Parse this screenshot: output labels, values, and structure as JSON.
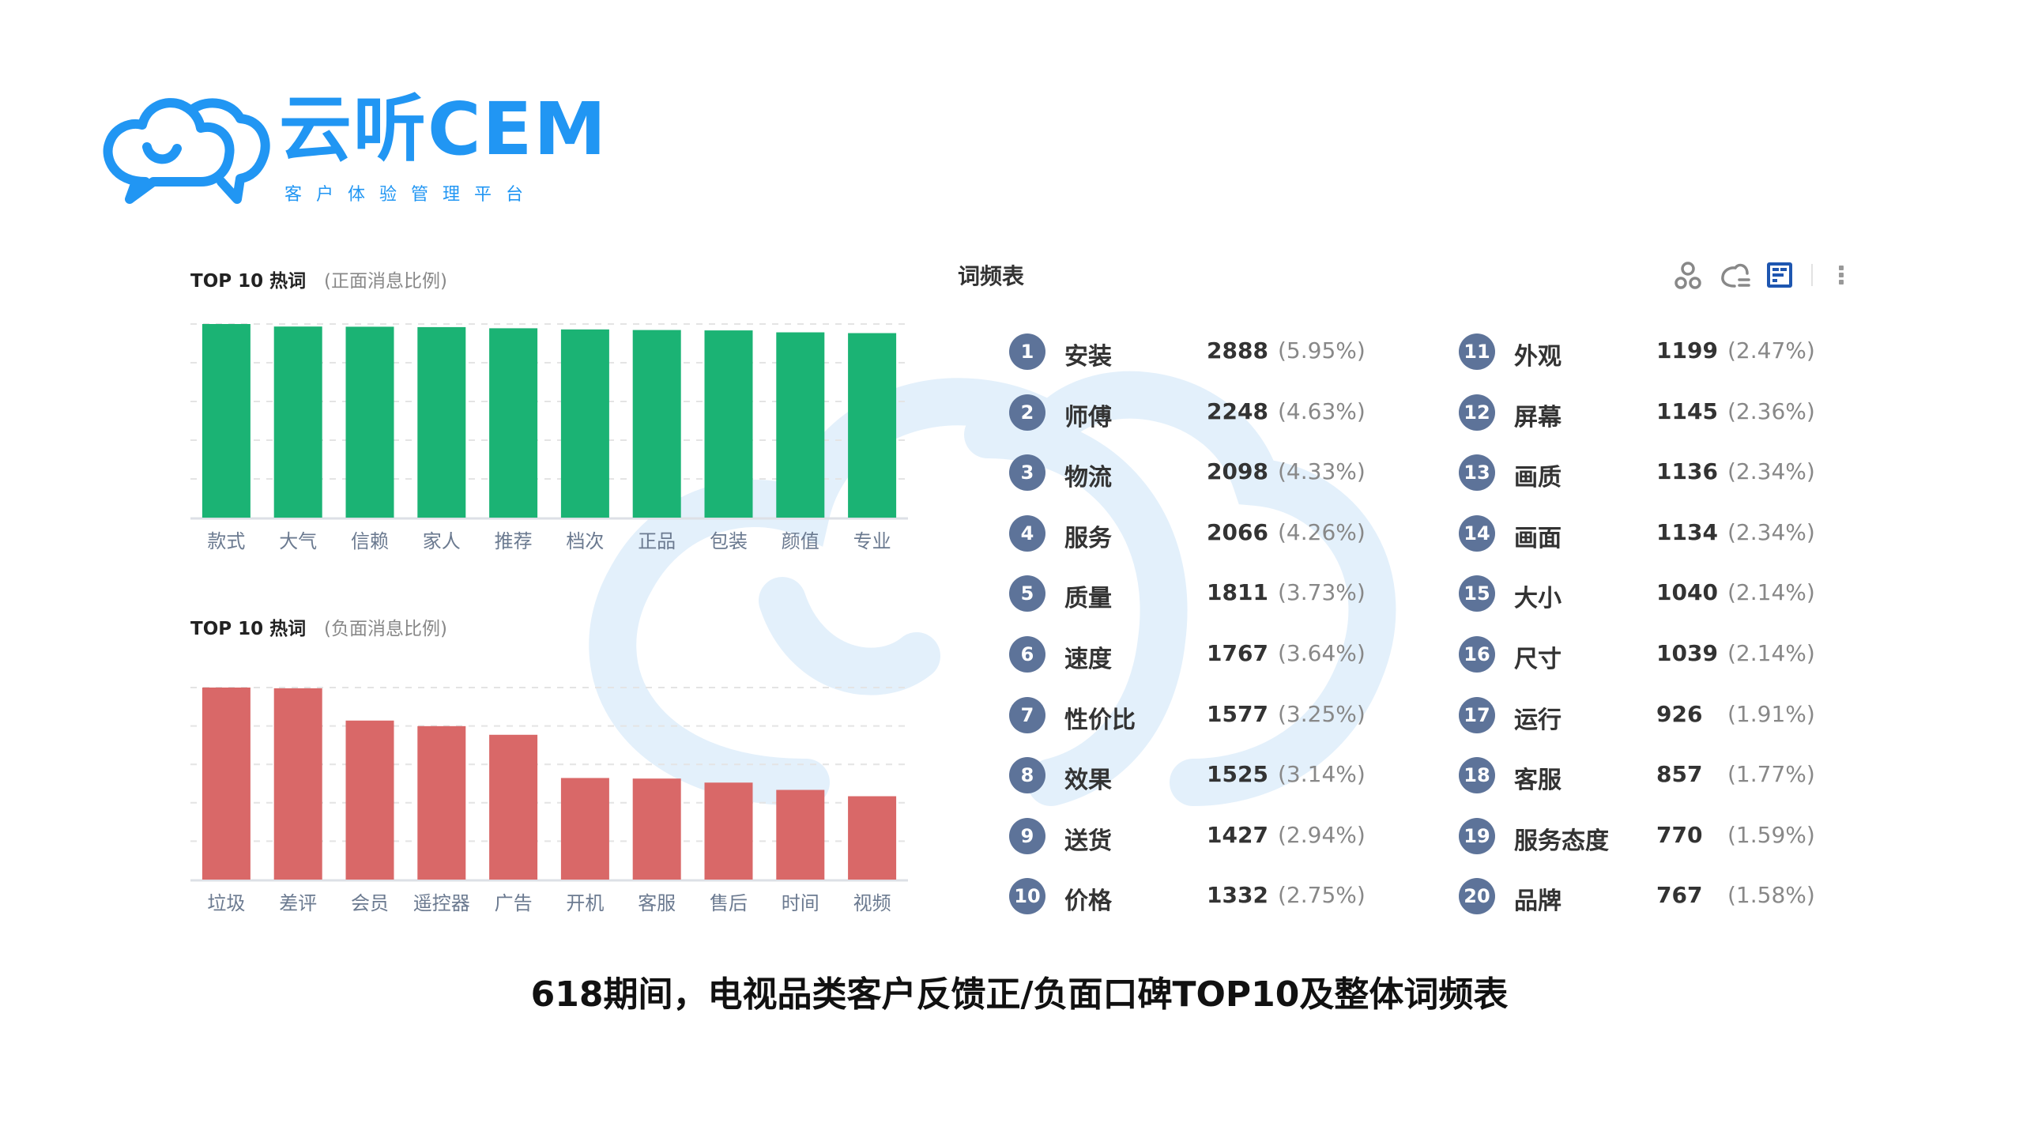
{
  "brand": {
    "name": "云听CEM",
    "tagline": "客户体验管理平台",
    "color": "#2196f3"
  },
  "chart_data": [
    {
      "type": "bar",
      "title": "TOP 10 热词",
      "subtitle": "(正面消息比例)",
      "categories": [
        "款式",
        "大气",
        "信赖",
        "家人",
        "推荐",
        "档次",
        "正品",
        "包装",
        "颜值",
        "专业"
      ],
      "values": [
        100,
        98.7,
        98.6,
        98.4,
        97.8,
        97.2,
        96.9,
        96.7,
        95.7,
        95.3
      ],
      "ylim": [
        0,
        100
      ],
      "grid": true,
      "color": "#1bb374",
      "xlabel": "",
      "ylabel": ""
    },
    {
      "type": "bar",
      "title": "TOP 10 热词",
      "subtitle": "(负面消息比例)",
      "categories": [
        "垃圾",
        "差评",
        "会员",
        "遥控器",
        "广告",
        "开机",
        "客服",
        "售后",
        "时间",
        "视频"
      ],
      "values": [
        100,
        99.6,
        82.8,
        79.9,
        75.4,
        52.9,
        52.6,
        50.5,
        46.7,
        43.4
      ],
      "ylim": [
        0,
        100
      ],
      "grid": true,
      "color": "#d96868",
      "xlabel": "",
      "ylabel": ""
    }
  ],
  "word_table": {
    "title": "词频表",
    "icons": [
      "bubble-icon",
      "word-cloud-icon",
      "table-view-icon",
      "more-icon"
    ],
    "rank_color": "#5d7399",
    "rows": [
      {
        "rank": "1",
        "word": "安装",
        "count": "2888",
        "pct": "(5.95%)"
      },
      {
        "rank": "2",
        "word": "师傅",
        "count": "2248",
        "pct": "(4.63%)"
      },
      {
        "rank": "3",
        "word": "物流",
        "count": "2098",
        "pct": "(4.33%)"
      },
      {
        "rank": "4",
        "word": "服务",
        "count": "2066",
        "pct": "(4.26%)"
      },
      {
        "rank": "5",
        "word": "质量",
        "count": "1811",
        "pct": "(3.73%)"
      },
      {
        "rank": "6",
        "word": "速度",
        "count": "1767",
        "pct": "(3.64%)"
      },
      {
        "rank": "7",
        "word": "性价比",
        "count": "1577",
        "pct": "(3.25%)"
      },
      {
        "rank": "8",
        "word": "效果",
        "count": "1525",
        "pct": "(3.14%)"
      },
      {
        "rank": "9",
        "word": "送货",
        "count": "1427",
        "pct": "(2.94%)"
      },
      {
        "rank": "10",
        "word": "价格",
        "count": "1332",
        "pct": "(2.75%)"
      },
      {
        "rank": "11",
        "word": "外观",
        "count": "1199",
        "pct": "(2.47%)"
      },
      {
        "rank": "12",
        "word": "屏幕",
        "count": "1145",
        "pct": "(2.36%)"
      },
      {
        "rank": "13",
        "word": "画质",
        "count": "1136",
        "pct": "(2.34%)"
      },
      {
        "rank": "14",
        "word": "画面",
        "count": "1134",
        "pct": "(2.34%)"
      },
      {
        "rank": "15",
        "word": "大小",
        "count": "1040",
        "pct": "(2.14%)"
      },
      {
        "rank": "16",
        "word": "尺寸",
        "count": "1039",
        "pct": "(2.14%)"
      },
      {
        "rank": "17",
        "word": "运行",
        "count": "926",
        "pct": "(1.91%)"
      },
      {
        "rank": "18",
        "word": "客服",
        "count": "857",
        "pct": "(1.77%)"
      },
      {
        "rank": "19",
        "word": "服务态度",
        "count": "770",
        "pct": "(1.59%)"
      },
      {
        "rank": "20",
        "word": "品牌",
        "count": "767",
        "pct": "(1.58%)"
      }
    ]
  },
  "caption": "618期间，电视品类客户反馈正/负面口碑TOP10及整体词频表"
}
